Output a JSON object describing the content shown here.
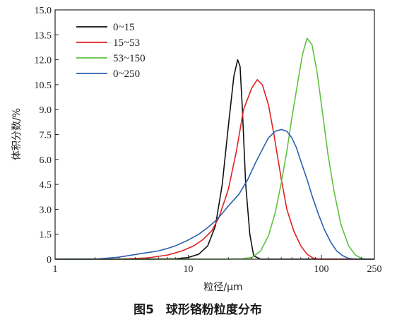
{
  "chart_data": {
    "type": "line",
    "title": "",
    "caption": "图5　球形铬粉粒度分布",
    "xlabel": "粒径/μm",
    "ylabel": "体积分数/%",
    "x_scale": "log",
    "xlim": [
      1,
      250
    ],
    "ylim": [
      0,
      15
    ],
    "x_ticks": [
      1,
      10,
      100,
      250
    ],
    "x_tick_labels": [
      "1",
      "10",
      "100",
      "250"
    ],
    "y_ticks": [
      0,
      1.5,
      3.0,
      4.5,
      6.0,
      7.5,
      9.0,
      10.5,
      12.0,
      13.5,
      15.0
    ],
    "y_tick_labels": [
      "0",
      "1.5",
      "3.0",
      "4.5",
      "6.0",
      "7.5",
      "9.0",
      "10.5",
      "12.0",
      "13.5",
      "15.0"
    ],
    "legend_position": "top-left",
    "grid": false,
    "series": [
      {
        "name": "0~15",
        "color": "#111111",
        "x": [
          1,
          5,
          8,
          10,
          12,
          14,
          16,
          18,
          20,
          22,
          23.5,
          24.5,
          25.5,
          27,
          29,
          31,
          35,
          100,
          250
        ],
        "y": [
          0,
          0,
          0.02,
          0.1,
          0.3,
          0.8,
          2.0,
          4.5,
          8.0,
          11.0,
          12.0,
          11.6,
          9.0,
          4.5,
          1.5,
          0.2,
          0,
          0,
          0
        ]
      },
      {
        "name": "15~53",
        "color": "#e02020",
        "x": [
          1,
          3,
          5,
          7,
          9,
          11,
          13,
          15,
          17,
          20,
          23,
          26,
          30,
          33,
          36,
          40,
          44,
          50,
          55,
          62,
          70,
          78,
          86,
          95,
          250
        ],
        "y": [
          0,
          0,
          0.08,
          0.25,
          0.5,
          0.8,
          1.2,
          1.7,
          2.5,
          4.2,
          6.5,
          9.0,
          10.3,
          10.8,
          10.5,
          9.3,
          7.5,
          4.8,
          3.0,
          1.7,
          0.8,
          0.3,
          0.08,
          0,
          0
        ]
      },
      {
        "name": "53~150",
        "color": "#5ec23c",
        "x": [
          1,
          20,
          25,
          30,
          35,
          40,
          45,
          50,
          55,
          60,
          66,
          72,
          78,
          85,
          93,
          102,
          112,
          125,
          140,
          160,
          180,
          200,
          220,
          250
        ],
        "y": [
          0,
          0,
          0.02,
          0.1,
          0.5,
          1.4,
          2.8,
          4.6,
          6.5,
          8.5,
          10.5,
          12.3,
          13.3,
          12.9,
          11.2,
          8.8,
          6.3,
          4.0,
          2.1,
          0.8,
          0.25,
          0.05,
          0,
          0
        ]
      },
      {
        "name": "0~250",
        "color": "#2a5fb0",
        "x": [
          1,
          2,
          3,
          4,
          5,
          6,
          7,
          8,
          10,
          12,
          14,
          16,
          18,
          20,
          24,
          28,
          32,
          36,
          40,
          45,
          50,
          55,
          60,
          65,
          70,
          78,
          86,
          95,
          105,
          118,
          130,
          145,
          160,
          180,
          200,
          250
        ],
        "y": [
          0,
          0,
          0.12,
          0.28,
          0.4,
          0.5,
          0.65,
          0.8,
          1.15,
          1.5,
          1.9,
          2.3,
          2.75,
          3.2,
          3.9,
          4.8,
          5.8,
          6.6,
          7.3,
          7.7,
          7.8,
          7.7,
          7.3,
          6.7,
          5.9,
          4.8,
          3.7,
          2.7,
          1.8,
          1.0,
          0.5,
          0.2,
          0.05,
          0,
          0,
          0
        ]
      }
    ]
  }
}
